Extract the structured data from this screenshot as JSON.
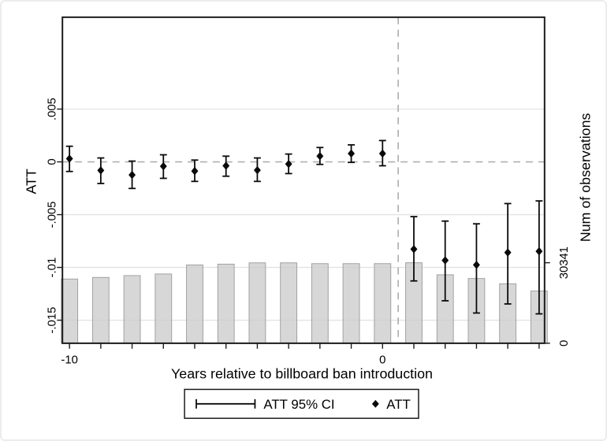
{
  "figure": {
    "colors": {
      "frame": "#1a1a1a",
      "grid": "#e2e2e2",
      "dashed_ref": "#b0b0b0",
      "bar_fill": "#cdcdcd",
      "bar_stroke": "#a1a1a1",
      "marker": "#0a0a0a",
      "background": "#ffffff",
      "outer_border": "#ececec"
    }
  },
  "chart_data": {
    "type": "combo: scatter-diamond + errorbar (left axis) + bar (right axis)",
    "title": "",
    "xlabel": "Years relative to billboard ban introduction",
    "ylabel_left": "ATT",
    "ylabel_right": "Num of observations",
    "legend": {
      "ci_label": "ATT 95% CI",
      "att_label": "ATT"
    },
    "x": [
      -10,
      -9,
      -8,
      -7,
      -6,
      -5,
      -4,
      -3,
      -2,
      -1,
      0,
      1,
      2,
      3,
      4,
      5
    ],
    "x_tick_labels": {
      "-10": "-10",
      "0": "0"
    },
    "series": [
      {
        "name": "ATT",
        "type": "scatter",
        "marker": "diamond",
        "axis": "left",
        "values": [
          0.0003,
          -0.00081,
          -0.00124,
          -0.00042,
          -0.00087,
          -0.00037,
          -0.00079,
          -0.0002,
          0.00054,
          0.00079,
          0.00079,
          -0.00827,
          -0.00933,
          -0.00976,
          -0.00859,
          -0.00847
        ]
      },
      {
        "name": "ATT 95% CI",
        "type": "errorbar",
        "axis": "left",
        "low": [
          -0.00091,
          -0.00205,
          -0.00252,
          -0.00156,
          -0.00185,
          -0.00136,
          -0.00185,
          -0.00111,
          -0.00024,
          -5e-05,
          -0.00037,
          -0.01128,
          -0.01316,
          -0.01432,
          -0.01346,
          -0.0144
        ],
        "high": [
          0.00148,
          0.00037,
          7e-05,
          0.00067,
          0.00017,
          0.00054,
          0.00037,
          0.00074,
          0.00136,
          0.00161,
          0.00202,
          -0.00519,
          -0.00561,
          -0.00587,
          -0.00395,
          -0.0037
        ]
      },
      {
        "name": "Num of observations",
        "type": "bar",
        "axis": "right",
        "values": [
          24200,
          24800,
          25500,
          26100,
          29500,
          29800,
          30300,
          30300,
          30000,
          30000,
          30000,
          30341,
          25800,
          24400,
          22400,
          19700
        ]
      }
    ],
    "y_left_ticks": [
      {
        "value": 0.005,
        "label": ".005"
      },
      {
        "value": 0,
        "label": "0"
      },
      {
        "value": -0.005,
        "label": "-.005"
      },
      {
        "value": -0.01,
        "label": "-.01"
      },
      {
        "value": -0.015,
        "label": "-.015"
      }
    ],
    "y_right_ticks": [
      {
        "value": 30341,
        "label": "30341"
      },
      {
        "value": 0,
        "label": "0"
      }
    ],
    "y_left_range": [
      -0.0172,
      0.0137
    ],
    "y_right_range": [
      0,
      30341
    ],
    "reference_lines": {
      "horizontal_y": 0,
      "vertical_x": 0.5
    },
    "grid": "horizontal-only",
    "legend_position": "bottom-center"
  }
}
